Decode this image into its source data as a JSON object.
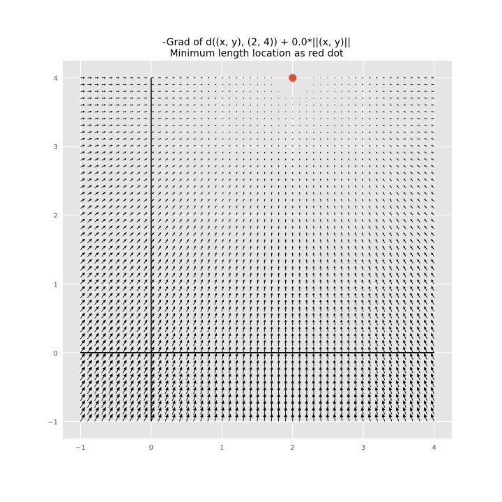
{
  "chart_data": {
    "type": "quiver",
    "title_lines": [
      "-Grad of d((x, y), (2, 4)) + 0.0*||(x, y)||",
      "Minimum length location as red dot"
    ],
    "xlabel": "",
    "ylabel": "",
    "xlim": [
      -1.25,
      4.25
    ],
    "ylim": [
      -1.25,
      4.25
    ],
    "xticks": [
      -1,
      0,
      1,
      2,
      3,
      4
    ],
    "yticks": [
      -1,
      0,
      1,
      2,
      3,
      4
    ],
    "xtick_labels": [
      "−1",
      "0",
      "1",
      "2",
      "3",
      "4"
    ],
    "ytick_labels": [
      "−1",
      "0",
      "1",
      "2",
      "3",
      "4"
    ],
    "grid": true,
    "style": "ggplot",
    "field": {
      "function": "-grad of distance to (2, 4) + 0.0*||(x, y)||",
      "target": [
        2,
        4
      ],
      "weight_norm": 0.0,
      "x_range": [
        -1,
        4
      ],
      "y_range": [
        -1,
        4
      ],
      "samples_per_axis": 51
    },
    "min_point": {
      "x": 2,
      "y": 4,
      "color": "#E24A33"
    },
    "reference_lines": [
      {
        "orientation": "horizontal",
        "value": 0,
        "from": -1,
        "to": 4
      },
      {
        "orientation": "vertical",
        "value": 0,
        "from": -1,
        "to": 4
      }
    ],
    "colors": {
      "axes_background": "#E5E5E5",
      "grid": "#FFFFFF",
      "arrow": "#000000",
      "axis_line": "#000000",
      "tick_label": "#555555"
    }
  }
}
